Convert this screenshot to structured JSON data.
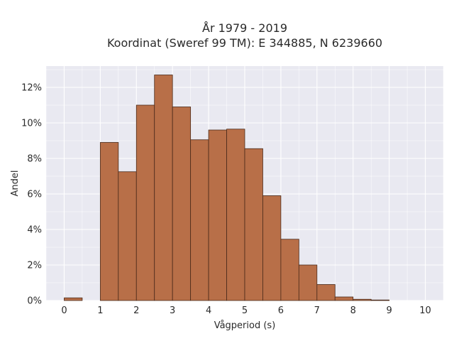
{
  "chart_data": {
    "type": "bar",
    "title": "År 1979 - 2019",
    "subtitle": "Koordinat (Sweref 99 TM): E 344885, N 6239660",
    "xlabel": "Vågperiod (s)",
    "ylabel": "Andel",
    "xlim": [
      -0.5,
      10.5
    ],
    "ylim": [
      0,
      13.2
    ],
    "x_ticks": [
      "0",
      "1",
      "2",
      "3",
      "4",
      "5",
      "6",
      "7",
      "8",
      "9",
      "10"
    ],
    "y_ticks": [
      "0%",
      "2%",
      "4%",
      "6%",
      "8%",
      "10%",
      "12%"
    ],
    "y_tick_values": [
      0,
      2,
      4,
      6,
      8,
      10,
      12
    ],
    "x_tick_values": [
      0,
      1,
      2,
      3,
      4,
      5,
      6,
      7,
      8,
      9,
      10
    ],
    "bin_width": 0.5,
    "bins": [
      {
        "start": 0.0,
        "value": 0.15
      },
      {
        "start": 0.5,
        "value": 0.0
      },
      {
        "start": 1.0,
        "value": 8.9
      },
      {
        "start": 1.5,
        "value": 7.25
      },
      {
        "start": 2.0,
        "value": 11.0
      },
      {
        "start": 2.5,
        "value": 12.7
      },
      {
        "start": 3.0,
        "value": 10.9
      },
      {
        "start": 3.5,
        "value": 9.05
      },
      {
        "start": 4.0,
        "value": 9.6
      },
      {
        "start": 4.5,
        "value": 9.65
      },
      {
        "start": 5.0,
        "value": 8.55
      },
      {
        "start": 5.5,
        "value": 5.9
      },
      {
        "start": 6.0,
        "value": 3.45
      },
      {
        "start": 6.5,
        "value": 2.0
      },
      {
        "start": 7.0,
        "value": 0.9
      },
      {
        "start": 7.5,
        "value": 0.2
      },
      {
        "start": 8.0,
        "value": 0.07
      },
      {
        "start": 8.5,
        "value": 0.03
      },
      {
        "start": 9.0,
        "value": 0.0
      },
      {
        "start": 9.5,
        "value": 0.0
      }
    ],
    "grid": true,
    "colors": {
      "bar_fill": "#b86f48",
      "bar_stroke": "#4a2a1a",
      "plot_bg": "#e9e9f1",
      "grid": "#ffffff"
    }
  }
}
